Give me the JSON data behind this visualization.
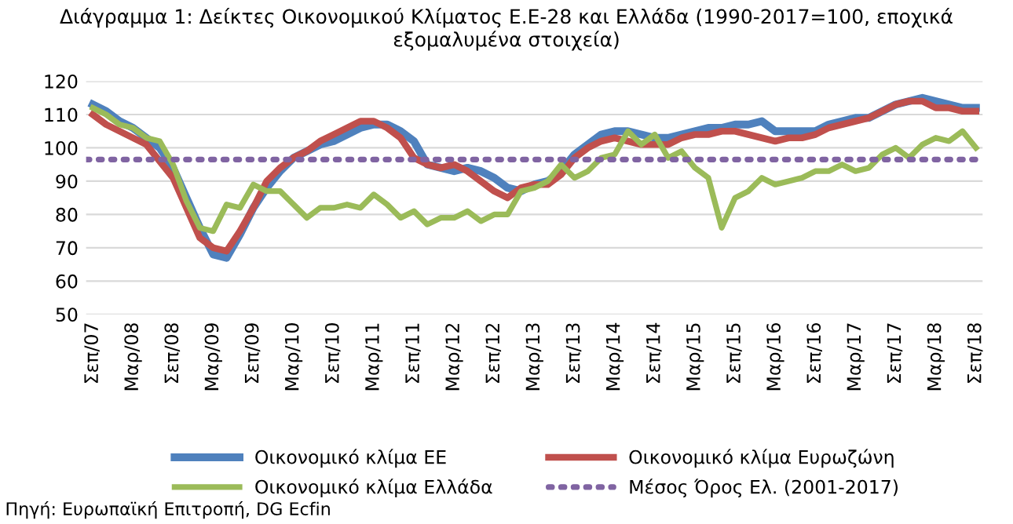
{
  "chart_data": {
    "type": "line",
    "title": "Διάγραμμα 1: Δείκτες Οικονομικού Κλίματος Ε.Ε-28 και Ελλάδα (1990-2017=100, εποχικά εξομαλυμένα στοιχεία)",
    "categories": [
      "Σεπ/07",
      null,
      null,
      "Μαρ/08",
      null,
      null,
      "Σεπ/08",
      null,
      null,
      "Μαρ/09",
      null,
      null,
      "Σεπ/09",
      null,
      null,
      "Μαρ/10",
      null,
      null,
      "Σεπ/10",
      null,
      null,
      "Μαρ/11",
      null,
      null,
      "Σεπ/11",
      null,
      null,
      "Μαρ/12",
      null,
      null,
      "Σεπ/12",
      null,
      null,
      "Μαρ/13",
      null,
      null,
      "Σεπ/13",
      null,
      null,
      "Μαρ/14",
      null,
      null,
      "Σεπ/14",
      null,
      null,
      "Μαρ/15",
      null,
      null,
      "Σεπ/15",
      null,
      null,
      "Μαρ/16",
      null,
      null,
      "Σεπ/16",
      null,
      null,
      "Μαρ/17",
      null,
      null,
      "Σεπ/17",
      null,
      null,
      "Μαρ/18",
      null,
      null,
      "Σεπ/18"
    ],
    "series": [
      {
        "name": "Οικονομικό κλίμα ΕΕ",
        "color": "#4f81bd",
        "values": [
          113,
          111,
          108,
          106,
          103,
          100,
          94,
          85,
          76,
          68,
          67,
          74,
          82,
          88,
          93,
          97,
          99,
          101,
          102,
          104,
          106,
          107,
          107,
          105,
          102,
          95,
          94,
          93,
          94,
          93,
          91,
          88,
          87,
          89,
          90,
          93,
          98,
          101,
          104,
          105,
          105,
          104,
          103,
          103,
          104,
          105,
          106,
          106,
          107,
          107,
          108,
          105,
          105,
          105,
          105,
          107,
          108,
          109,
          109,
          111,
          113,
          114,
          115,
          114,
          113,
          112,
          112
        ]
      },
      {
        "name": "Οικονομικό κλίμα Ευρωζώνη",
        "color": "#c0504d",
        "values": [
          110,
          107,
          105,
          103,
          101,
          96,
          91,
          82,
          73,
          70,
          69,
          75,
          82,
          90,
          94,
          97,
          99,
          102,
          104,
          106,
          108,
          108,
          106,
          103,
          97,
          95,
          94,
          95,
          93,
          90,
          87,
          85,
          88,
          89,
          89,
          92,
          97,
          100,
          102,
          103,
          102,
          101,
          101,
          101,
          103,
          104,
          104,
          105,
          105,
          104,
          103,
          102,
          103,
          103,
          104,
          106,
          107,
          108,
          109,
          111,
          113,
          114,
          114,
          112,
          112,
          111,
          111
        ]
      },
      {
        "name": "Οικονομικό κλίμα Ελλάδα",
        "color": "#9bbb59",
        "values": [
          112,
          110,
          107,
          106,
          103,
          102,
          95,
          84,
          76,
          75,
          83,
          82,
          89,
          87,
          87,
          83,
          79,
          82,
          82,
          83,
          82,
          86,
          83,
          79,
          81,
          77,
          79,
          79,
          81,
          78,
          80,
          80,
          87,
          88,
          90,
          95,
          91,
          93,
          97,
          98,
          105,
          101,
          104,
          97,
          99,
          94,
          91,
          76,
          85,
          87,
          91,
          89,
          90,
          91,
          93,
          93,
          95,
          93,
          94,
          98,
          100,
          97,
          101,
          103,
          102,
          105,
          100
        ]
      }
    ],
    "ref_lines": [
      {
        "axis": "y",
        "value": 96.5,
        "label": "Μέσος Όρος Ελ. (2001-2017)",
        "color": "#8064a2",
        "line_style": "dotted"
      }
    ],
    "ylim": [
      50,
      120
    ],
    "yticks": [
      50,
      60,
      70,
      80,
      90,
      100,
      110,
      120
    ],
    "grid": "y",
    "legend": "bottom",
    "marker": "none",
    "line_style": "solid",
    "annotations": [
      "Πηγή: Ευρωπαϊκή Επιτροπή, DG Ecfin"
    ]
  }
}
